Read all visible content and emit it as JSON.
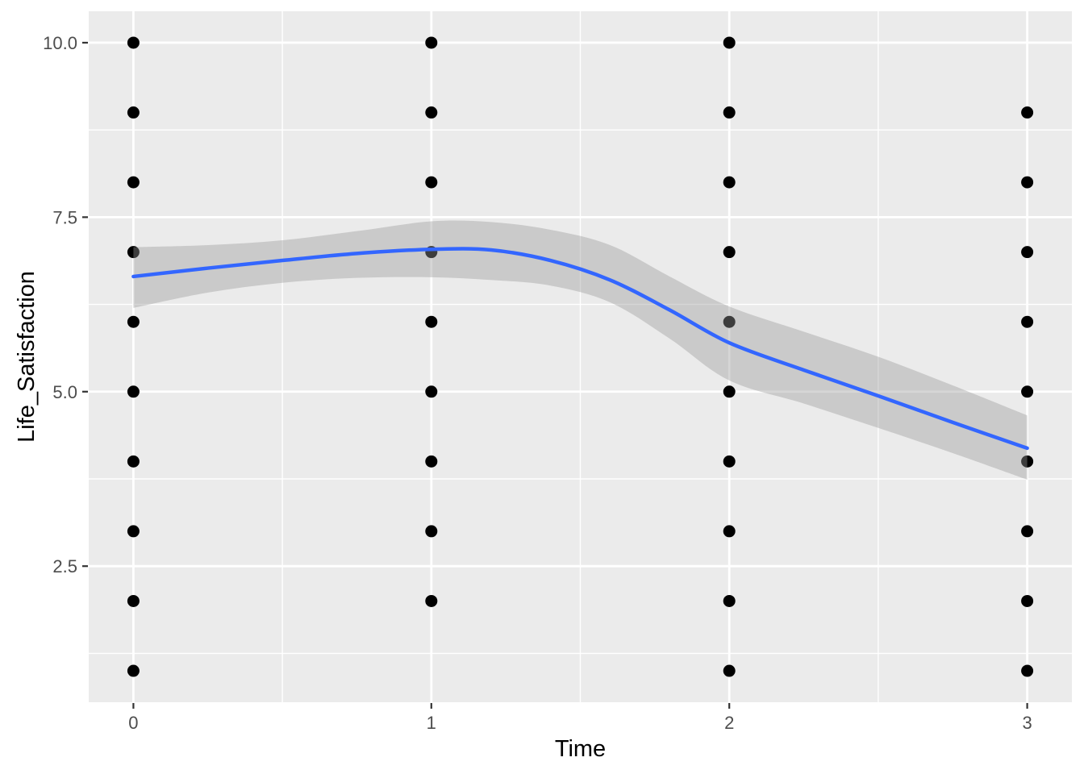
{
  "chart_data": {
    "type": "scatter",
    "title": "",
    "xlabel": "Time",
    "ylabel": "Life_Satisfaction",
    "legend": "none",
    "grid": "major+minor",
    "xlim": [
      -0.15,
      3.15
    ],
    "ylim": [
      0.55,
      10.45
    ],
    "x_ticks": {
      "values": [
        0,
        1,
        2,
        3
      ],
      "labels": [
        "0",
        "1",
        "2",
        "3"
      ]
    },
    "y_ticks": {
      "values": [
        2.5,
        5.0,
        7.5,
        10.0
      ],
      "labels": [
        "2.5",
        "5.0",
        "7.5",
        "10.0"
      ]
    },
    "points": [
      {
        "time": 0,
        "life_satisfaction": [
          1,
          2,
          3,
          4,
          5,
          6,
          7,
          8,
          9,
          10
        ]
      },
      {
        "time": 1,
        "life_satisfaction": [
          2,
          3,
          4,
          5,
          6,
          7,
          8,
          9,
          10
        ]
      },
      {
        "time": 2,
        "life_satisfaction": [
          1,
          2,
          3,
          4,
          5,
          6,
          7,
          8,
          9,
          10
        ]
      },
      {
        "time": 3,
        "life_satisfaction": [
          1,
          2,
          3,
          4,
          5,
          6,
          7,
          8,
          9
        ]
      }
    ],
    "smooth_line": {
      "x": [
        0,
        0.25,
        0.5,
        0.75,
        1.0,
        1.2,
        1.4,
        1.6,
        1.8,
        2.0,
        2.25,
        2.5,
        2.75,
        3.0
      ],
      "y": [
        6.65,
        6.77,
        6.88,
        6.98,
        7.04,
        7.03,
        6.88,
        6.6,
        6.17,
        5.7,
        5.31,
        4.94,
        4.56,
        4.19
      ]
    },
    "confidence_band": {
      "x": [
        0,
        0.25,
        0.5,
        0.75,
        1.0,
        1.2,
        1.4,
        1.6,
        1.8,
        2.0,
        2.25,
        2.5,
        2.75,
        3.0
      ],
      "upper": [
        7.07,
        7.1,
        7.17,
        7.3,
        7.44,
        7.43,
        7.32,
        7.1,
        6.65,
        6.22,
        5.86,
        5.5,
        5.09,
        4.66
      ],
      "lower": [
        6.2,
        6.42,
        6.56,
        6.63,
        6.64,
        6.6,
        6.52,
        6.28,
        5.76,
        5.16,
        4.83,
        4.48,
        4.12,
        3.74
      ]
    },
    "colors": {
      "figure_bg": "#FFFFFF",
      "panel_bg": "#EBEBEB",
      "grid": "#FFFFFF",
      "point": "#000000",
      "smooth_line": "#3366FF",
      "band": "#999999",
      "band_opacity": 0.4,
      "tick_mark": "#333333",
      "tick_label": "#4D4D4D",
      "axis_title": "#000000"
    }
  }
}
